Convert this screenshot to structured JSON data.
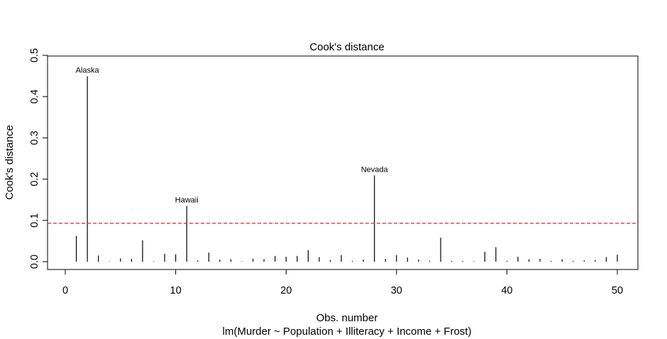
{
  "chart_data": {
    "type": "bar",
    "title": "Cook's distance",
    "xlabel": "Obs. number",
    "subtitle": "lm(Murder ~ Population + Illiteracy + Income + Frost)",
    "ylabel": "Cook's distance",
    "xlim": [
      0,
      50
    ],
    "ylim": [
      0,
      0.5
    ],
    "x_ticks": [
      "0",
      "10",
      "20",
      "30",
      "40",
      "50"
    ],
    "y_ticks": [
      "0.0",
      "0.1",
      "0.2",
      "0.3",
      "0.4",
      "0.5"
    ],
    "x": [
      1,
      2,
      3,
      4,
      5,
      6,
      7,
      8,
      9,
      10,
      11,
      12,
      13,
      14,
      15,
      16,
      17,
      18,
      19,
      20,
      21,
      22,
      23,
      24,
      25,
      26,
      27,
      28,
      29,
      30,
      31,
      32,
      33,
      34,
      35,
      36,
      37,
      38,
      39,
      40,
      41,
      42,
      43,
      44,
      45,
      46,
      47,
      48,
      49,
      50
    ],
    "values": [
      0.062,
      0.449,
      0.015,
      0.001,
      0.008,
      0.007,
      0.052,
      0.001,
      0.019,
      0.018,
      0.135,
      0.003,
      0.022,
      0.005,
      0.006,
      0.001,
      0.007,
      0.006,
      0.014,
      0.012,
      0.014,
      0.028,
      0.011,
      0.004,
      0.016,
      0.002,
      0.005,
      0.209,
      0.007,
      0.016,
      0.01,
      0.005,
      0.002,
      0.058,
      0.002,
      0.002,
      0.001,
      0.024,
      0.035,
      0.002,
      0.012,
      0.006,
      0.007,
      0.002,
      0.006,
      0.002,
      0.003,
      0.004,
      0.011,
      0.017
    ],
    "threshold": {
      "value": 0.093,
      "color": "#e0242b",
      "style": "dashed"
    },
    "annotations": [
      {
        "label": "Alaska",
        "x": 2,
        "y": 0.449
      },
      {
        "label": "Hawaii",
        "x": 11,
        "y": 0.135
      },
      {
        "label": "Nevada",
        "x": 28,
        "y": 0.209
      }
    ],
    "grid": false,
    "colors": {
      "bars": "#000000",
      "threshold": "#e0242b"
    }
  }
}
